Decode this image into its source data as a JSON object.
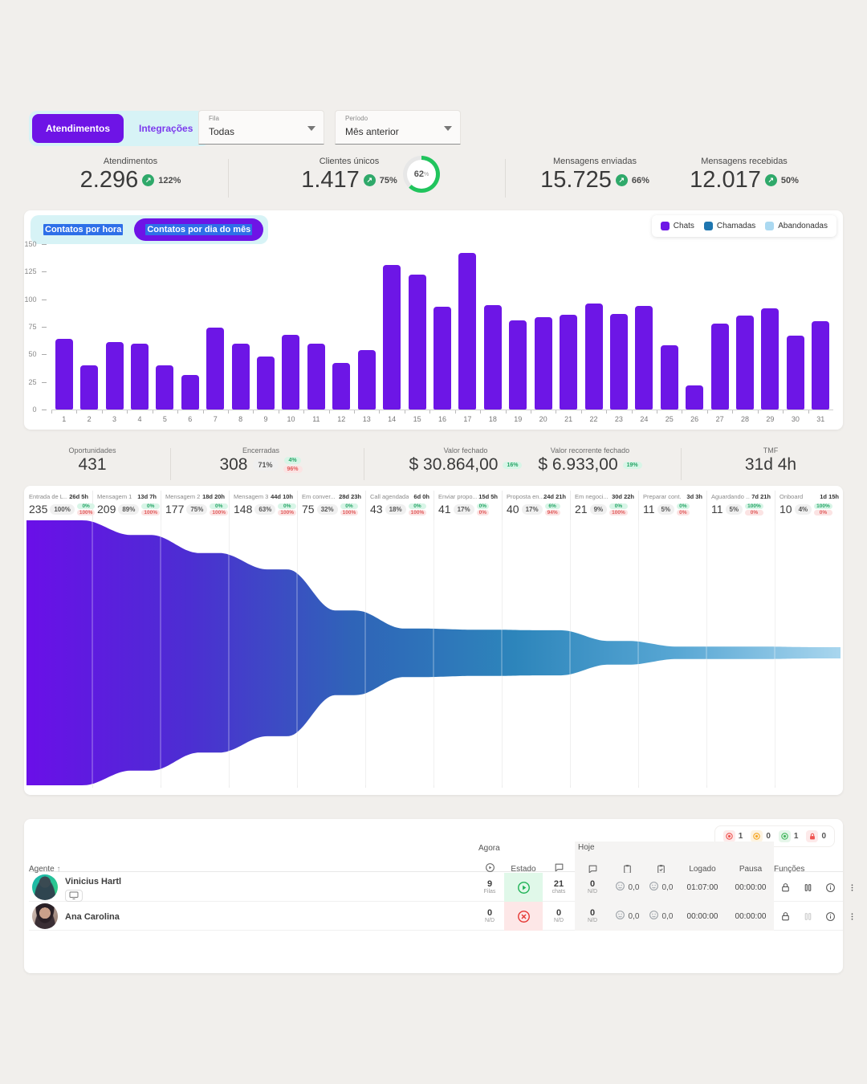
{
  "tabs": [
    {
      "label": "Atendimentos",
      "active": true
    },
    {
      "label": "Integrações",
      "active": false
    }
  ],
  "filters": [
    {
      "label": "Fila",
      "value": "Todas"
    },
    {
      "label": "Período",
      "value": "Mês anterior"
    }
  ],
  "kpis": [
    {
      "label": "Atendimentos",
      "value": "2.296",
      "delta": "122%"
    },
    {
      "label": "Clientes únicos",
      "value": "1.417",
      "delta": "75%",
      "donut_pct": 62,
      "donut_text": "62",
      "donut_unit": "%"
    },
    {
      "label": "Mensagens enviadas",
      "value": "15.725",
      "delta": "66%"
    },
    {
      "label": "Mensagens recebidas",
      "value": "12.017",
      "delta": "50%"
    }
  ],
  "chart_toggle": [
    {
      "label": "Contatos por hora",
      "active": false
    },
    {
      "label": "Contatos por dia do mês",
      "active": true
    }
  ],
  "chart_legend": [
    {
      "label": "Chats",
      "color": "#6d16e6"
    },
    {
      "label": "Chamadas",
      "color": "#1e76b0"
    },
    {
      "label": "Abandonadas",
      "color": "#abd9f1"
    }
  ],
  "chart_data": [
    {
      "type": "bar",
      "title": "Contatos por dia do mês",
      "categories": [
        1,
        2,
        3,
        4,
        5,
        6,
        7,
        8,
        9,
        10,
        11,
        12,
        13,
        14,
        15,
        16,
        17,
        18,
        19,
        20,
        21,
        22,
        23,
        24,
        25,
        26,
        27,
        28,
        29,
        30,
        31
      ],
      "values": [
        64,
        40,
        61,
        60,
        40,
        31,
        74,
        60,
        48,
        68,
        60,
        42,
        54,
        131,
        122,
        93,
        142,
        95,
        81,
        84,
        86,
        96,
        87,
        94,
        58,
        22,
        78,
        85,
        92,
        67,
        80
      ],
      "xlabel": "",
      "ylabel": "",
      "ylim": [
        0,
        150
      ],
      "yticks": [
        0,
        25,
        50,
        75,
        100,
        125,
        150
      ],
      "grid": false,
      "bar_color": "#6d16e6",
      "legend_position": "top-right"
    },
    {
      "type": "area",
      "title": "Funil de oportunidades",
      "categories": [
        "Entrada de L...",
        "Mensagem 1",
        "Mensagem 2",
        "Mensagem 3",
        "Em conver...",
        "Call agendada",
        "Enviar propo...",
        "Proposta en...",
        "Em negoci...",
        "Preparar cont...",
        "Aguardando ...",
        "Onboard"
      ],
      "values": [
        235,
        209,
        177,
        148,
        75,
        43,
        41,
        40,
        21,
        11,
        11,
        10
      ]
    }
  ],
  "stats": {
    "oportunidades": {
      "label": "Oportunidades",
      "value": "431"
    },
    "encerradas": {
      "label": "Encerradas",
      "value": "308",
      "pct": "71%",
      "up": "4%",
      "down": "96%"
    },
    "valor_fechado": {
      "label": "Valor fechado",
      "value": "$ 30.864,00",
      "badge": "16%"
    },
    "valor_recorrente": {
      "label": "Valor recorrente fechado",
      "value": "$ 6.933,00",
      "badge": "19%"
    },
    "tmf": {
      "label": "TMF",
      "value": "31d 4h"
    }
  },
  "funnel": {
    "stages": [
      {
        "name": "Entrada de L...",
        "duration": "26d 5h",
        "value": 235,
        "pct": "100%",
        "up": "0%",
        "down": "100%"
      },
      {
        "name": "Mensagem 1",
        "duration": "13d 7h",
        "value": 209,
        "pct": "89%",
        "up": "0%",
        "down": "100%"
      },
      {
        "name": "Mensagem 2",
        "duration": "18d 20h",
        "value": 177,
        "pct": "75%",
        "up": "0%",
        "down": "100%"
      },
      {
        "name": "Mensagem 3",
        "duration": "44d 10h",
        "value": 148,
        "pct": "63%",
        "up": "0%",
        "down": "100%"
      },
      {
        "name": "Em conver...",
        "duration": "28d 23h",
        "value": 75,
        "pct": "32%",
        "up": "0%",
        "down": "100%"
      },
      {
        "name": "Call agendada",
        "duration": "6d 0h",
        "value": 43,
        "pct": "18%",
        "up": "0%",
        "down": "100%"
      },
      {
        "name": "Enviar propo...",
        "duration": "15d 5h",
        "value": 41,
        "pct": "17%",
        "up": "0%",
        "down": "0%"
      },
      {
        "name": "Proposta en...",
        "duration": "24d 21h",
        "value": 40,
        "pct": "17%",
        "up": "6%",
        "down": "94%"
      },
      {
        "name": "Em negoci...",
        "duration": "30d 22h",
        "value": 21,
        "pct": "9%",
        "up": "0%",
        "down": "100%"
      },
      {
        "name": "Preparar cont...",
        "duration": "3d 3h",
        "value": 11,
        "pct": "5%",
        "up": "0%",
        "down": "0%"
      },
      {
        "name": "Aguardando ...",
        "duration": "7d 21h",
        "value": 11,
        "pct": "5%",
        "up": "100%",
        "down": "0%"
      },
      {
        "name": "Onboard",
        "duration": "1d 15h",
        "value": 10,
        "pct": "4%",
        "up": "100%",
        "down": "0%"
      }
    ],
    "gradient": [
      "#6a0fe8",
      "#4c2ed2",
      "#2f64b8",
      "#2d85bb",
      "#58a7d4",
      "#a9d6ee"
    ]
  },
  "agents": {
    "counters": [
      {
        "type": "status",
        "color": "#ef5350",
        "bg": "#fdeaea",
        "value": "1"
      },
      {
        "type": "status",
        "color": "#f5a623",
        "bg": "#fdf3e0",
        "value": "0"
      },
      {
        "type": "status",
        "color": "#43b75d",
        "bg": "#e6f6ea",
        "value": "1"
      },
      {
        "type": "lock",
        "color": "#ef5350",
        "bg": "#fdeaea",
        "value": "0"
      }
    ],
    "groups": {
      "agora": "Agora",
      "hoje": "Hoje"
    },
    "headers": {
      "agente": "Agente",
      "estado": "Estado",
      "logado": "Logado",
      "pausa": "Pausa",
      "funcoes": "Funções"
    },
    "rows": [
      {
        "name": "Vinicius Hartl",
        "chip": true,
        "c1": "9",
        "c1s": "Filas",
        "estado": "play",
        "c2": "21",
        "c2s": "chats",
        "c3": "0",
        "c3s": "N/D",
        "r1": "0,0",
        "r2": "0,0",
        "logado": "01:07:00",
        "pausa": "00:00:00",
        "pause_active": true
      },
      {
        "name": "Ana Carolina",
        "chip": false,
        "c1": "0",
        "c1s": "N/D",
        "estado": "x",
        "c2": "0",
        "c2s": "N/D",
        "c3": "0",
        "c3s": "N/D",
        "r1": "0,0",
        "r2": "0,0",
        "logado": "00:00:00",
        "pausa": "00:00:00",
        "pause_active": false
      }
    ]
  }
}
